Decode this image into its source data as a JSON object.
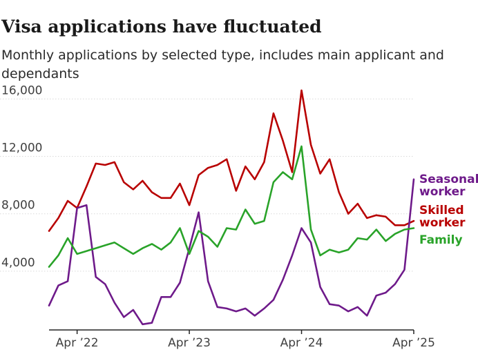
{
  "chart_data": {
    "type": "line",
    "title": "Visa applications have fluctuated",
    "subtitle": "Monthly applications by selected type, includes main applicant and dependants",
    "xlabel": "",
    "ylabel": "",
    "x_start": "Jan 2022",
    "x_end": "Apr 2025",
    "xlim": [
      0,
      39
    ],
    "ylim": [
      0,
      16500
    ],
    "grid": true,
    "x_ticks": [
      {
        "index": 3,
        "label": "Apr ’22"
      },
      {
        "index": 15,
        "label": "Apr ’23"
      },
      {
        "index": 27,
        "label": "Apr ’24"
      },
      {
        "index": 39,
        "label": "Apr ’25"
      }
    ],
    "y_ticks": [
      {
        "value": 4000,
        "label": "4,000"
      },
      {
        "value": 8000,
        "label": "8,000"
      },
      {
        "value": 12000,
        "label": "12,000"
      },
      {
        "value": 16000,
        "label": "16,000"
      }
    ],
    "series": [
      {
        "name": "Skilled worker",
        "label_lines": [
          "Skilled",
          "worker"
        ],
        "color": "#b80000",
        "values": [
          6800,
          7700,
          8900,
          8400,
          9900,
          11500,
          11400,
          11600,
          10200,
          9700,
          10300,
          9500,
          9100,
          9100,
          10100,
          8600,
          10700,
          11200,
          11400,
          11800,
          9600,
          11300,
          10400,
          11600,
          15000,
          13100,
          10900,
          16600,
          12800,
          10800,
          11800,
          9500,
          8000,
          8700,
          7700,
          7900,
          7800,
          7200,
          7200,
          7500
        ]
      },
      {
        "name": "Seasonal worker",
        "label_lines": [
          "Seasonal",
          "worker"
        ],
        "color": "#6e1a8a",
        "values": [
          1600,
          3000,
          3300,
          8400,
          8600,
          3600,
          3100,
          1800,
          800,
          1300,
          300,
          400,
          2200,
          2200,
          3200,
          5600,
          8100,
          3300,
          1500,
          1400,
          1200,
          1400,
          900,
          1400,
          2000,
          3400,
          5100,
          7000,
          6000,
          2900,
          1700,
          1600,
          1200,
          1500,
          900,
          2300,
          2500,
          3100,
          4100,
          10400
        ]
      },
      {
        "name": "Family",
        "label_lines": [
          "Family"
        ],
        "color": "#29a329",
        "values": [
          4300,
          5100,
          6300,
          5200,
          5400,
          5600,
          5800,
          6000,
          5600,
          5200,
          5600,
          5900,
          5500,
          6000,
          7000,
          5200,
          6800,
          6400,
          5700,
          7000,
          6900,
          8300,
          7300,
          7500,
          10200,
          10900,
          10400,
          12700,
          6900,
          5100,
          5500,
          5300,
          5500,
          6300,
          6200,
          6900,
          6100,
          6600,
          6900,
          7000
        ]
      }
    ]
  }
}
